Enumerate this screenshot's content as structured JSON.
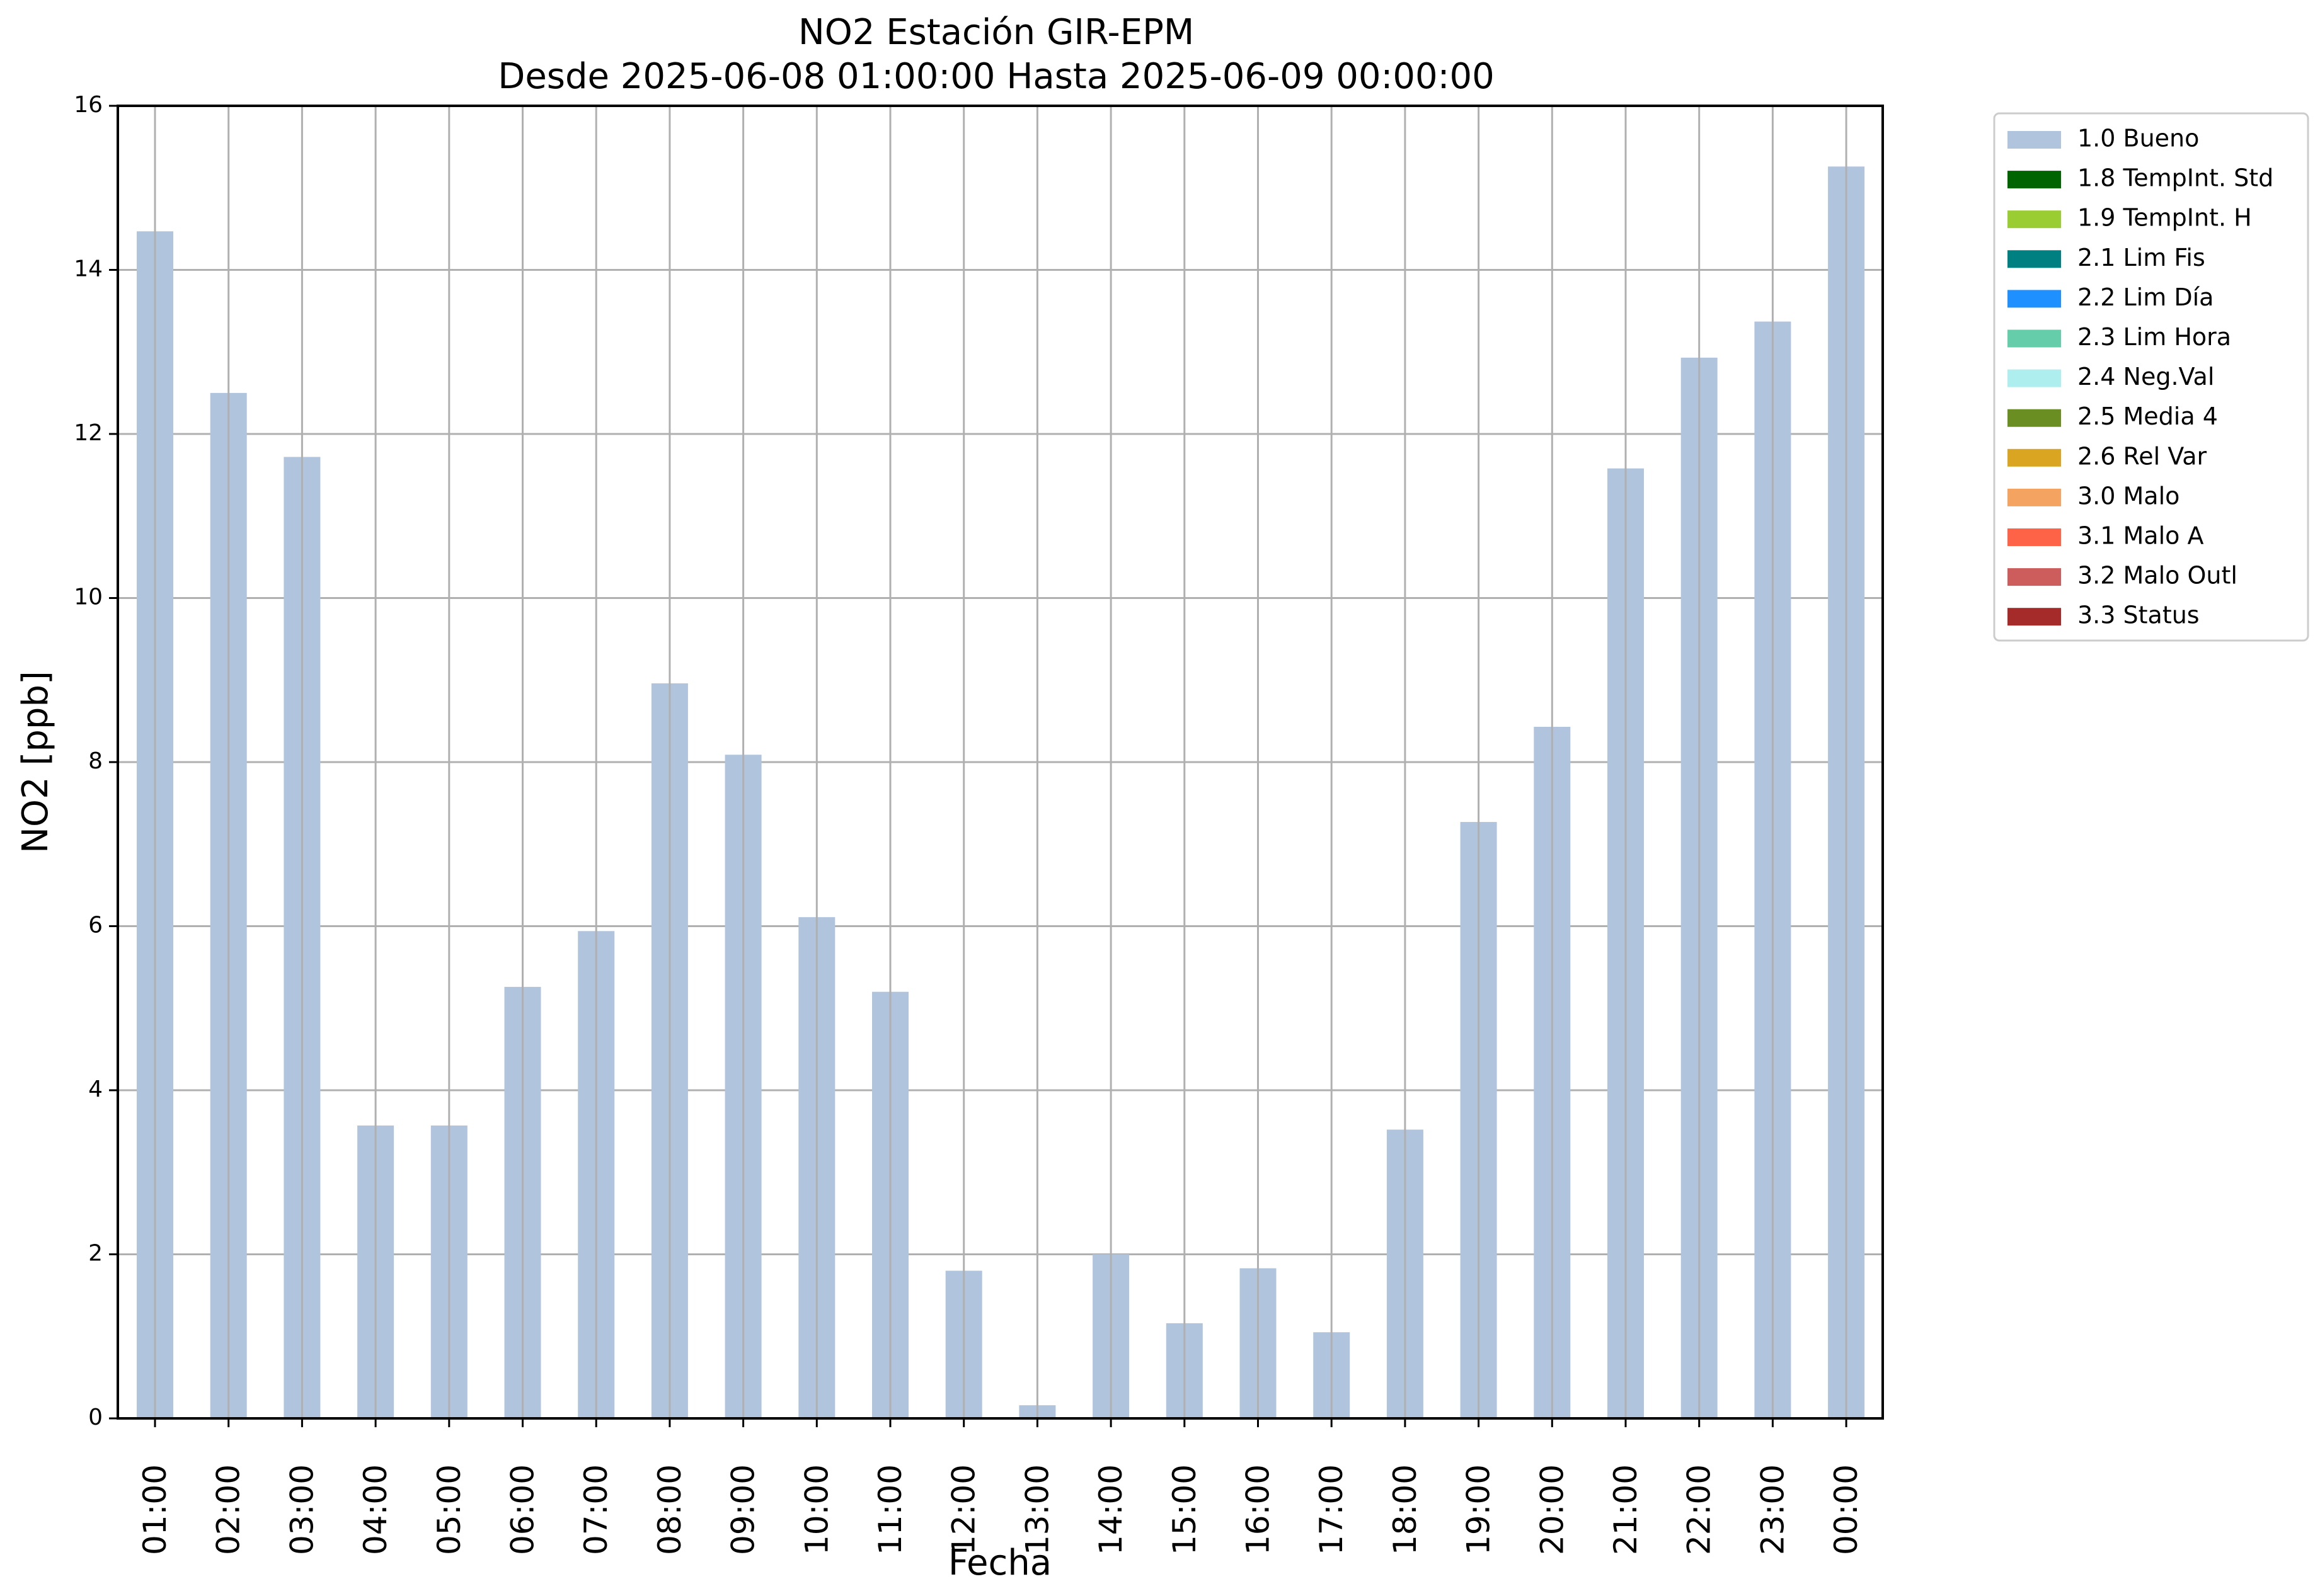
{
  "chart_data": {
    "type": "bar",
    "title": "NO2 Estación GIR-EPM",
    "subtitle": "Desde 2025-06-08 01:00:00 Hasta 2025-06-09 00:00:00",
    "xlabel": "Fecha",
    "ylabel": "NO2 [ppb]",
    "ylim": [
      0,
      16
    ],
    "yticks": [
      "0",
      "2",
      "4",
      "6",
      "8",
      "10",
      "12",
      "14",
      "16"
    ],
    "grid": true,
    "legend_position": "outside-right-top",
    "categories": [
      "01:00",
      "02:00",
      "03:00",
      "04:00",
      "05:00",
      "06:00",
      "07:00",
      "08:00",
      "09:00",
      "10:00",
      "11:00",
      "12:00",
      "13:00",
      "14:00",
      "15:00",
      "16:00",
      "17:00",
      "18:00",
      "19:00",
      "20:00",
      "21:00",
      "22:00",
      "23:00",
      "00:00"
    ],
    "series": [
      {
        "name": "1.0 Bueno",
        "color": "#b0c4de",
        "values": [
          14.47,
          12.5,
          11.72,
          3.57,
          3.57,
          5.26,
          5.94,
          8.96,
          8.09,
          6.11,
          5.2,
          1.8,
          0.16,
          2.0,
          1.16,
          1.83,
          1.05,
          3.52,
          7.27,
          8.43,
          11.58,
          12.93,
          13.37,
          15.26
        ]
      }
    ],
    "legend": [
      {
        "label": "1.0 Bueno",
        "color": "#b0c4de"
      },
      {
        "label": "1.8 TempInt. Std",
        "color": "#006400"
      },
      {
        "label": "1.9 TempInt. H",
        "color": "#9acd32"
      },
      {
        "label": "2.1 Lim Fis",
        "color": "#008080"
      },
      {
        "label": "2.2 Lim Día",
        "color": "#1e90ff"
      },
      {
        "label": "2.3 Lim Hora",
        "color": "#66cdaa"
      },
      {
        "label": "2.4 Neg.Val",
        "color": "#afeeee"
      },
      {
        "label": "2.5 Media 4",
        "color": "#6b8e23"
      },
      {
        "label": "2.6 Rel Var",
        "color": "#daa520"
      },
      {
        "label": "3.0 Malo",
        "color": "#f4a460"
      },
      {
        "label": "3.1 Malo A",
        "color": "#ff6347"
      },
      {
        "label": "3.2 Malo Outl",
        "color": "#cd5c5c"
      },
      {
        "label": "3.3 Status",
        "color": "#a52a2a"
      }
    ]
  }
}
